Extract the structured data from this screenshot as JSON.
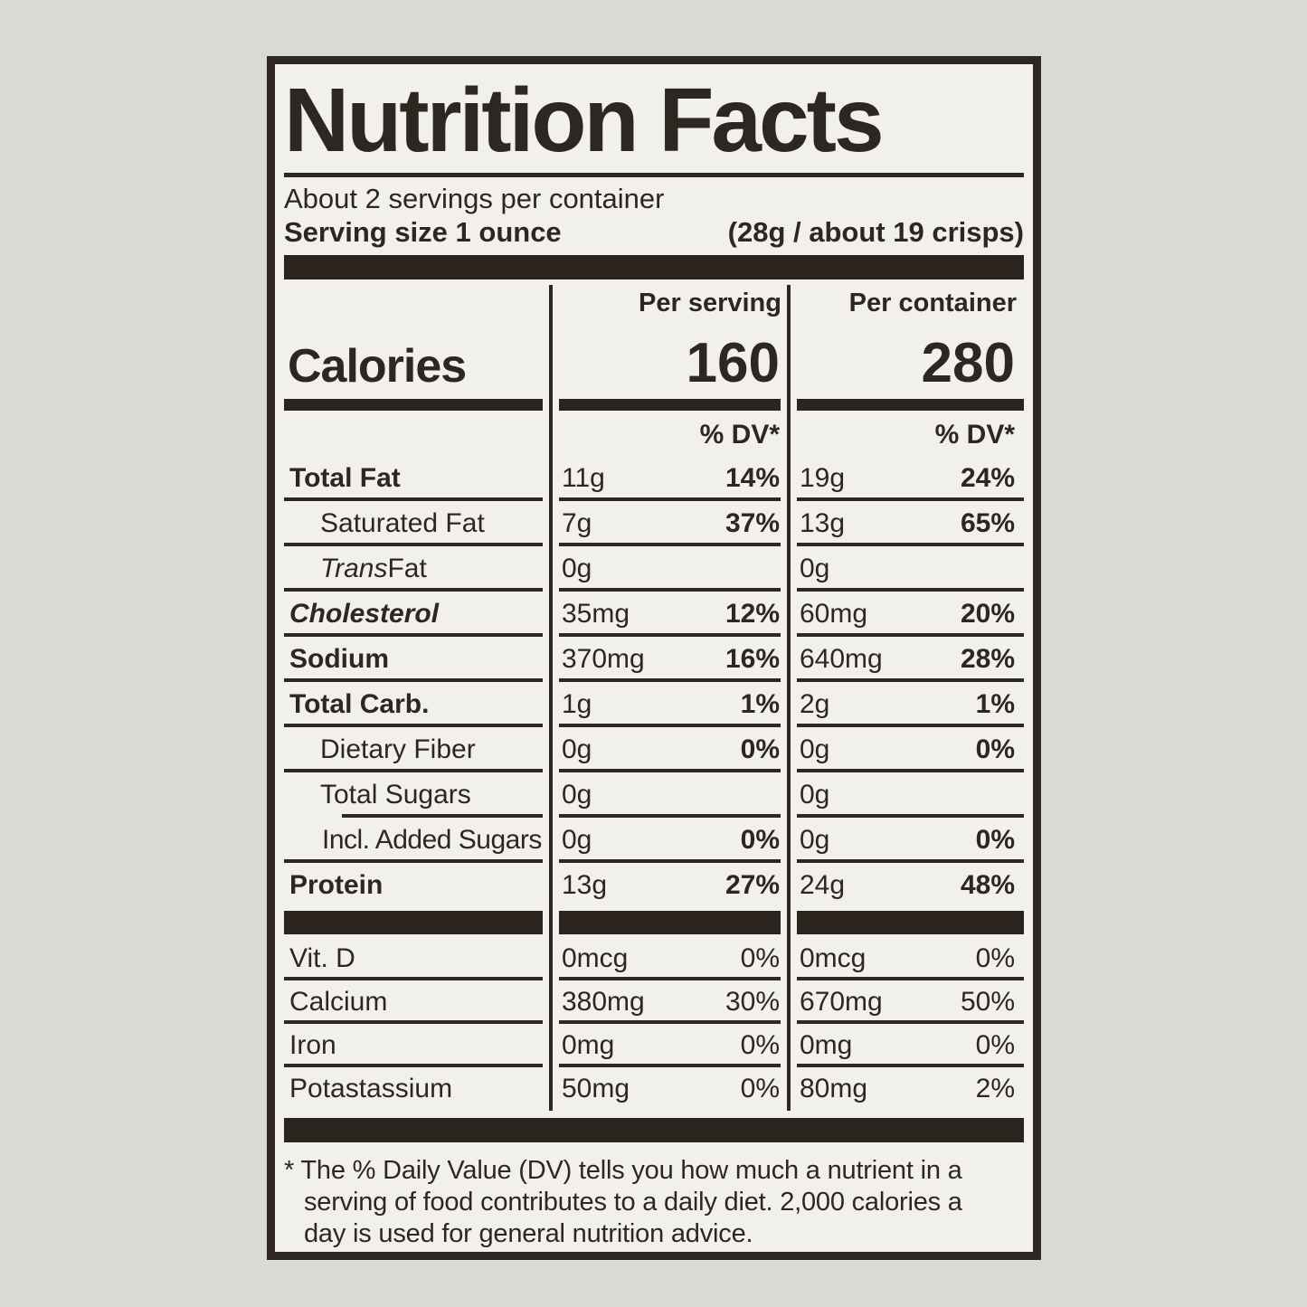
{
  "label": {
    "title": "Nutrition Facts",
    "servings_per_container": "About 2 servings per container",
    "serving_size_label": "Serving size 1 ounce",
    "serving_size_detail": "(28g / about 19 crisps)",
    "columns": {
      "serving": "Per serving",
      "container": "Per container"
    },
    "calories": {
      "label": "Calories",
      "per_serving": "160",
      "per_container": "280"
    },
    "dv_header": "% DV*",
    "rows": [
      {
        "style": "main",
        "iname": "",
        "name": "Total Fat",
        "s_amt": "11g",
        "s_dv": "14%",
        "c_amt": "19g",
        "c_dv": "24%"
      },
      {
        "style": "sub",
        "iname": "",
        "name": "Saturated Fat",
        "s_amt": "7g",
        "s_dv": "37%",
        "c_amt": "13g",
        "c_dv": "65%"
      },
      {
        "style": "sub",
        "iname": "Trans",
        "name": " Fat",
        "s_amt": "0g",
        "s_dv": "",
        "c_amt": "0g",
        "c_dv": ""
      },
      {
        "style": "maini",
        "iname": "",
        "name": "Cholesterol",
        "s_amt": "35mg",
        "s_dv": "12%",
        "c_amt": "60mg",
        "c_dv": "20%"
      },
      {
        "style": "main",
        "iname": "",
        "name": "Sodium",
        "s_amt": "370mg",
        "s_dv": "16%",
        "c_amt": "640mg",
        "c_dv": "28%"
      },
      {
        "style": "main",
        "iname": "",
        "name": "Total Carb.",
        "s_amt": "1g",
        "s_dv": "1%",
        "c_amt": "2g",
        "c_dv": "1%"
      },
      {
        "style": "sub",
        "iname": "",
        "name": "Dietary Fiber",
        "s_amt": "0g",
        "s_dv": "0%",
        "c_amt": "0g",
        "c_dv": "0%"
      },
      {
        "style": "sub ts",
        "iname": "",
        "name": "Total Sugars",
        "s_amt": "0g",
        "s_dv": "",
        "c_amt": "0g",
        "c_dv": ""
      },
      {
        "style": "sub2",
        "iname": "",
        "name": "Incl. Added Sugars",
        "s_amt": "0g",
        "s_dv": "0%",
        "c_amt": "0g",
        "c_dv": "0%"
      },
      {
        "style": "main",
        "iname": "",
        "name": "Protein",
        "s_amt": "13g",
        "s_dv": "27%",
        "c_amt": "24g",
        "c_dv": "48%"
      }
    ],
    "micronutrients": [
      {
        "style": "plain",
        "iname": "",
        "name": "Vit. D",
        "s_amt": "0mcg",
        "s_dv": "0%",
        "c_amt": "0mcg",
        "c_dv": "0%"
      },
      {
        "style": "plain",
        "iname": "",
        "name": "Calcium",
        "s_amt": "380mg",
        "s_dv": "30%",
        "c_amt": "670mg",
        "c_dv": "50%"
      },
      {
        "style": "plain",
        "iname": "",
        "name": "Iron",
        "s_amt": "0mg",
        "s_dv": "0%",
        "c_amt": "0mg",
        "c_dv": "0%"
      },
      {
        "style": "plain",
        "iname": "",
        "name": "Potastassium",
        "s_amt": "50mg",
        "s_dv": "0%",
        "c_amt": "80mg",
        "c_dv": "2%"
      }
    ],
    "footnote_lines": [
      "* The % Daily Value (DV) tells you how much a nutrient in a",
      "serving of food contributes to a daily diet. 2,000 calories a",
      "day is used for general nutrition advice."
    ]
  }
}
